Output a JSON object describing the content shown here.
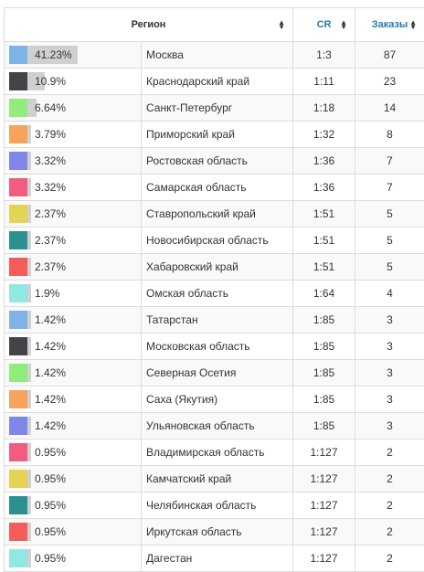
{
  "header": {
    "region_label": "Регион",
    "cr_label": "CR",
    "orders_label": "Заказы"
  },
  "colors": {
    "blue": "#7eb5e6",
    "dark": "#434348",
    "green": "#90ed7d",
    "orange": "#f7a35c",
    "purple": "#8085e9",
    "pink": "#f15c80",
    "yellow": "#e4d354",
    "teal": "#2b908f",
    "red": "#f45b5b",
    "cyan": "#91e8e1",
    "bar_bg": "#d0d0d0",
    "header_link": "#2a7ab0"
  },
  "rows": [
    {
      "share": "41.23%",
      "share_value": 41.23,
      "color": "#7eb5e6",
      "region": "Москва",
      "cr": "1:3",
      "orders": "87"
    },
    {
      "share": "10.9%",
      "share_value": 10.9,
      "color": "#434348",
      "region": "Краснодарский край",
      "cr": "1:11",
      "orders": "23"
    },
    {
      "share": "6.64%",
      "share_value": 6.64,
      "color": "#90ed7d",
      "region": "Санкт-Петербург",
      "cr": "1:18",
      "orders": "14"
    },
    {
      "share": "3.79%",
      "share_value": 3.79,
      "color": "#f7a35c",
      "region": "Приморский край",
      "cr": "1:32",
      "orders": "8"
    },
    {
      "share": "3.32%",
      "share_value": 3.32,
      "color": "#8085e9",
      "region": "Ростовская область",
      "cr": "1:36",
      "orders": "7"
    },
    {
      "share": "3.32%",
      "share_value": 3.32,
      "color": "#f15c80",
      "region": "Самарская область",
      "cr": "1:36",
      "orders": "7"
    },
    {
      "share": "2.37%",
      "share_value": 2.37,
      "color": "#e4d354",
      "region": "Ставропольский край",
      "cr": "1:51",
      "orders": "5"
    },
    {
      "share": "2.37%",
      "share_value": 2.37,
      "color": "#2b908f",
      "region": "Новосибирская область",
      "cr": "1:51",
      "orders": "5"
    },
    {
      "share": "2.37%",
      "share_value": 2.37,
      "color": "#f45b5b",
      "region": "Хабаровский край",
      "cr": "1:51",
      "orders": "5"
    },
    {
      "share": "1.9%",
      "share_value": 1.9,
      "color": "#91e8e1",
      "region": "Омская область",
      "cr": "1:64",
      "orders": "4"
    },
    {
      "share": "1.42%",
      "share_value": 1.42,
      "color": "#7eb5e6",
      "region": "Татарстан",
      "cr": "1:85",
      "orders": "3"
    },
    {
      "share": "1.42%",
      "share_value": 1.42,
      "color": "#434348",
      "region": "Московская область",
      "cr": "1:85",
      "orders": "3"
    },
    {
      "share": "1.42%",
      "share_value": 1.42,
      "color": "#90ed7d",
      "region": "Северная Осетия",
      "cr": "1:85",
      "orders": "3"
    },
    {
      "share": "1.42%",
      "share_value": 1.42,
      "color": "#f7a35c",
      "region": "Саха (Якутия)",
      "cr": "1:85",
      "orders": "3"
    },
    {
      "share": "1.42%",
      "share_value": 1.42,
      "color": "#8085e9",
      "region": "Ульяновская область",
      "cr": "1:85",
      "orders": "3"
    },
    {
      "share": "0.95%",
      "share_value": 0.95,
      "color": "#f15c80",
      "region": "Владимирская область",
      "cr": "1:127",
      "orders": "2"
    },
    {
      "share": "0.95%",
      "share_value": 0.95,
      "color": "#e4d354",
      "region": "Камчатский край",
      "cr": "1:127",
      "orders": "2"
    },
    {
      "share": "0.95%",
      "share_value": 0.95,
      "color": "#2b908f",
      "region": "Челябинская область",
      "cr": "1:127",
      "orders": "2"
    },
    {
      "share": "0.95%",
      "share_value": 0.95,
      "color": "#f45b5b",
      "region": "Иркутская область",
      "cr": "1:127",
      "orders": "2"
    },
    {
      "share": "0.95%",
      "share_value": 0.95,
      "color": "#91e8e1",
      "region": "Дагестан",
      "cr": "1:127",
      "orders": "2"
    }
  ]
}
